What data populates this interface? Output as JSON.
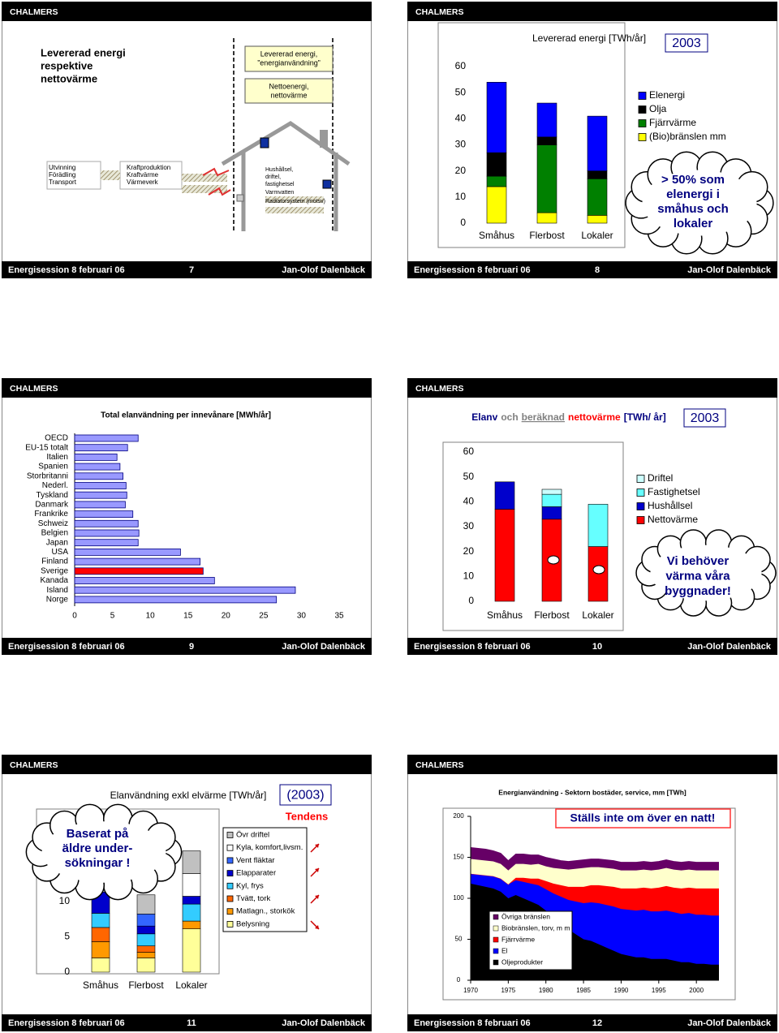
{
  "slides": [
    {
      "logo": "CHALMERS",
      "footer": {
        "event": "Energisession 8 februari 06",
        "page": "7",
        "author": "Jan-Olof Dalenbäck"
      },
      "diagram": {
        "title": [
          "Levererad energi",
          "respektive",
          "nettovärme"
        ],
        "delivered_box": [
          "Levererad energi,",
          "”energianvändning”"
        ],
        "net_box": [
          "Nettoenergi,",
          "nettovärme"
        ],
        "supply_box": [
          "Utvinning",
          "Förädling",
          "Transport"
        ],
        "plant_box": [
          "Kraftproduktion",
          "Kraftvärme",
          "Värmeverk"
        ],
        "household": [
          "Hushållsel,",
          "driftel,",
          "fastighetsel"
        ],
        "hot_water": "Varmvatten",
        "radiator": "Radiatorsystem (motsv)"
      }
    },
    {
      "logo": "CHALMERS",
      "footer": {
        "event": "Energisession 8 februari 06",
        "page": "8",
        "author": "Jan-Olof Dalenbäck"
      }
    },
    {
      "logo": "CHALMERS",
      "footer": {
        "event": "Energisession 8 februari 06",
        "page": "9",
        "author": "Jan-Olof Dalenbäck"
      }
    },
    {
      "logo": "CHALMERS",
      "footer": {
        "event": "Energisession 8 februari 06",
        "page": "10",
        "author": "Jan-Olof Dalenbäck"
      }
    },
    {
      "logo": "CHALMERS",
      "footer": {
        "event": "Energisession 8 februari 06",
        "page": "11",
        "author": "Jan-Olof Dalenbäck"
      }
    },
    {
      "logo": "CHALMERS",
      "footer": {
        "event": "Energisession 8 februari 06",
        "page": "12",
        "author": "Jan-Olof Dalenbäck"
      }
    }
  ],
  "chart_data": [
    {
      "type": "bar",
      "stacked": true,
      "title": "Levererad energi [TWh/år]",
      "year": "2003",
      "categories": [
        "Småhus",
        "Flerbost",
        "Lokaler"
      ],
      "series": [
        {
          "name": "(Bio)bränslen mm",
          "color": "#ffff00",
          "values": [
            14,
            4,
            3
          ]
        },
        {
          "name": "Fjärrvärme",
          "color": "#008000",
          "values": [
            4,
            26,
            14
          ]
        },
        {
          "name": "Olja",
          "color": "#000000",
          "values": [
            9,
            3,
            3
          ]
        },
        {
          "name": "Elenergi",
          "color": "#0000ff",
          "values": [
            27,
            13,
            21
          ]
        }
      ],
      "ylim": [
        0,
        60
      ],
      "yticks": [
        0,
        10,
        20,
        30,
        40,
        50,
        60
      ],
      "note": [
        "> 50% som",
        "elenergi i",
        "småhus och",
        "lokaler"
      ]
    },
    {
      "type": "bar",
      "orientation": "horizontal",
      "title": "Total elanvändning per innevånare [MWh/år]",
      "categories": [
        "OECD",
        "EU-15 totalt",
        "Italien",
        "Spanien",
        "Storbritanni",
        "Nederl.",
        "Tyskland",
        "Danmark",
        "Frankrike",
        "Schweiz",
        "Belgien",
        "Japan",
        "USA",
        "Finland",
        "Sverige",
        "Kanada",
        "Island",
        "Norge"
      ],
      "values": [
        8.4,
        7.0,
        5.6,
        6.0,
        6.4,
        6.8,
        6.9,
        6.7,
        7.7,
        8.4,
        8.5,
        8.4,
        14.0,
        16.6,
        17.0,
        18.5,
        29.2,
        26.7
      ],
      "colors": [
        "#9999ff",
        "#9999ff",
        "#9999ff",
        "#9999ff",
        "#9999ff",
        "#9999ff",
        "#9999ff",
        "#9999ff",
        "#9999ff",
        "#9999ff",
        "#9999ff",
        "#9999ff",
        "#9999ff",
        "#9999ff",
        "#ff0000",
        "#9999ff",
        "#9999ff",
        "#9999ff"
      ],
      "xlim": [
        0,
        35
      ],
      "xticks": [
        0,
        5,
        10,
        15,
        20,
        25,
        30,
        35
      ]
    },
    {
      "type": "bar",
      "stacked": true,
      "title_parts": [
        {
          "text": "Elanv",
          "color": "#000080"
        },
        {
          "text": "och",
          "color": "#808080"
        },
        {
          "text": "beräknad",
          "color": "#808080",
          "underline": true
        },
        {
          "text": "nettovärme",
          "color": "#ff0000"
        },
        {
          "text": "[TWh/ år]",
          "color": "#000080"
        }
      ],
      "year": "2003",
      "categories": [
        "Småhus",
        "Flerbost",
        "Lokaler"
      ],
      "series": [
        {
          "name": "Nettovärme",
          "color": "#ff0000",
          "values": [
            37,
            33,
            22
          ]
        },
        {
          "name": "Hushållsel",
          "color": "#0000cc",
          "values": [
            11,
            5,
            0
          ]
        },
        {
          "name": "Fastighetsel",
          "color": "#66ffff",
          "values": [
            0,
            5,
            17
          ]
        },
        {
          "name": "Driftel",
          "color": "#ccffff",
          "values": [
            0,
            2,
            0
          ]
        }
      ],
      "ylim": [
        0,
        60
      ],
      "yticks": [
        0,
        10,
        20,
        30,
        40,
        50,
        60
      ],
      "note": [
        "Vi behöver",
        "värma våra",
        "byggnader!"
      ]
    },
    {
      "type": "bar",
      "stacked": true,
      "title": "Elanvändning exkl elvärme [TWh/år]",
      "year": "(2003)",
      "trend": "Tendens",
      "categories": [
        "Småhus",
        "Flerbost",
        "Lokaler"
      ],
      "series": [
        {
          "name": "Belysning",
          "color": "#ffff99",
          "values": [
            2,
            2,
            6.1
          ]
        },
        {
          "name": "Matlagn., storkök",
          "color": "#ff9900",
          "values": [
            2.3,
            0.8,
            1.1
          ]
        },
        {
          "name": "Tvätt, tork",
          "color": "#ff6600",
          "values": [
            2,
            0.9,
            0
          ]
        },
        {
          "name": "Kyl, frys",
          "color": "#33ccff",
          "values": [
            2,
            1.7,
            2.4
          ]
        },
        {
          "name": "Elapparater",
          "color": "#0000cc",
          "values": [
            3,
            1.1,
            1.1
          ]
        },
        {
          "name": "Vent fläktar",
          "color": "#3366ff",
          "values": [
            0,
            1.7,
            0
          ]
        },
        {
          "name": "Kyla, komfort,livsm.",
          "color": "#ffffff",
          "values": [
            0,
            0,
            3.2
          ]
        },
        {
          "name": "Övr driftel",
          "color": "#c0c0c0",
          "values": [
            0,
            2.7,
            3.2
          ]
        }
      ],
      "ylim": [
        0,
        23
      ],
      "yticks": [
        0,
        5,
        10
      ],
      "note": [
        "Baserat på",
        "äldre under-",
        "sökningar !"
      ]
    },
    {
      "type": "area",
      "stacked": true,
      "title": "Energianvändning - Sektorn bostäder, service, mm [TWh]",
      "x": [
        1970,
        1971,
        1972,
        1973,
        1974,
        1975,
        1976,
        1977,
        1978,
        1979,
        1980,
        1981,
        1982,
        1983,
        1984,
        1985,
        1986,
        1987,
        1988,
        1989,
        1990,
        1991,
        1992,
        1993,
        1994,
        1995,
        1996,
        1997,
        1998,
        1999,
        2000,
        2001,
        2002,
        2003
      ],
      "series": [
        {
          "name": "Oljeprodukter",
          "color": "#000000",
          "values": [
            118,
            116,
            114,
            112,
            108,
            100,
            104,
            100,
            96,
            92,
            85,
            78,
            70,
            62,
            56,
            50,
            48,
            44,
            40,
            36,
            32,
            30,
            28,
            28,
            26,
            26,
            26,
            24,
            22,
            22,
            20,
            20,
            19,
            19
          ]
        },
        {
          "name": "El",
          "color": "#0000ff",
          "values": [
            12,
            13,
            14,
            15,
            16,
            17,
            18,
            20,
            22,
            24,
            26,
            28,
            32,
            36,
            40,
            44,
            47,
            50,
            52,
            54,
            55,
            56,
            57,
            58,
            58,
            58,
            59,
            59,
            59,
            60,
            60,
            60,
            60,
            60
          ]
        },
        {
          "name": "Fjärrvärme",
          "color": "#ff0000",
          "values": [
            0,
            0,
            0,
            0,
            0,
            0,
            3,
            5,
            6,
            8,
            10,
            12,
            14,
            16,
            18,
            20,
            21,
            22,
            23,
            24,
            25,
            26,
            27,
            27,
            28,
            29,
            30,
            30,
            31,
            31,
            32,
            32,
            33,
            33
          ]
        },
        {
          "name": "Biobränslen, torv, m m",
          "color": "#ffffcc",
          "values": [
            18,
            18,
            18,
            18,
            18,
            17,
            17,
            17,
            17,
            18,
            18,
            19,
            20,
            21,
            22,
            23,
            22,
            22,
            22,
            22,
            22,
            22,
            22,
            22,
            22,
            22,
            22,
            22,
            22,
            22,
            22,
            22,
            22,
            22
          ]
        },
        {
          "name": "Övriga bränslen",
          "color": "#660066",
          "values": [
            14,
            14,
            14,
            13,
            13,
            12,
            12,
            12,
            12,
            11,
            11,
            11,
            10,
            10,
            10,
            10,
            10,
            10,
            10,
            10,
            10,
            10,
            10,
            10,
            10,
            10,
            10,
            10,
            10,
            10,
            10,
            10,
            10,
            10
          ]
        }
      ],
      "xlim": [
        1970,
        2003
      ],
      "xticks": [
        1970,
        1975,
        1980,
        1985,
        1990,
        1995,
        2000
      ],
      "ylim": [
        0,
        200
      ],
      "yticks": [
        0,
        50,
        100,
        150,
        200
      ],
      "note": "Ställs inte om över en natt!"
    }
  ]
}
